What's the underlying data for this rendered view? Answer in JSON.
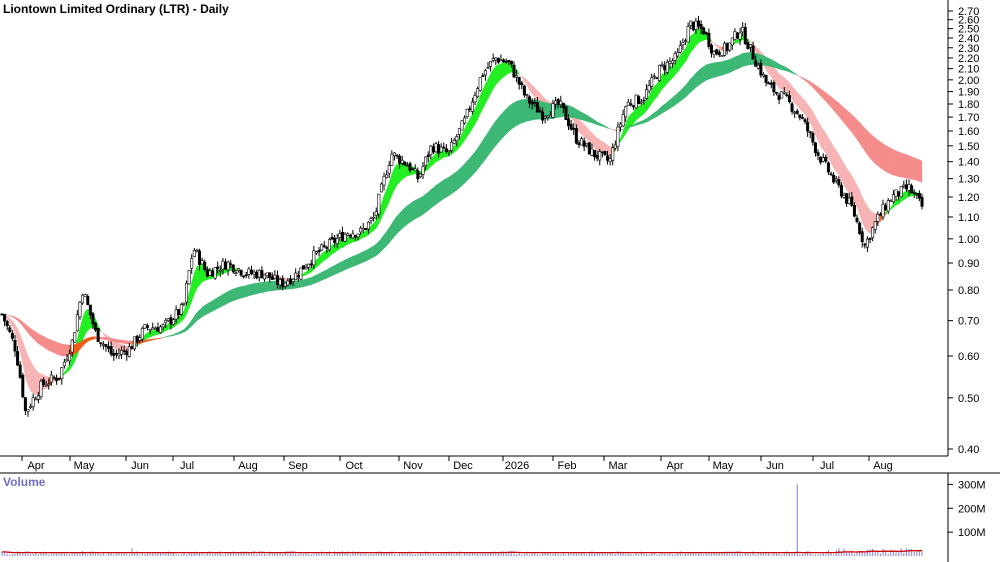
{
  "colors": {
    "background": "#ffffff",
    "short_band_up": "#22ee22",
    "short_band_down_light": "#f7b4b4",
    "short_band_down": "#f25a1a",
    "long_band_up": "#3cb874",
    "long_band_down_light": "#f58c8c",
    "long_band_down": "#f25a1a",
    "candle": "#000000",
    "volume_bar": "#8a8ae0",
    "volume_ma": "#cc0000",
    "axis_text": "#000000",
    "volume_title": "#6f6fc9"
  },
  "chart_data": [
    {
      "type": "candlestick",
      "title": "Liontown Limited Ordinary (LTR) - Daily",
      "xlabel": "",
      "ylabel": "",
      "ylim": [
        0.35,
        2.72
      ],
      "grid": false,
      "legend": "none",
      "y_scale": "log",
      "x_tick_labels": [
        "Apr",
        "May",
        "Jun",
        "Jul",
        "Aug",
        "Sep",
        "Oct",
        "Nov",
        "Dec",
        "2026",
        "Feb",
        "Mar",
        "Apr",
        "May",
        "Jun",
        "Jul",
        "Aug"
      ],
      "y_tick_labels": [
        "2.70",
        "2.60",
        "2.50",
        "2.40",
        "2.30",
        "2.20",
        "2.10",
        "2.00",
        "1.90",
        "1.80",
        "1.70",
        "1.60",
        "1.50",
        "1.40",
        "1.30",
        "1.20",
        "1.10",
        "1.00",
        "0.90",
        "0.80",
        "0.70",
        "0.60",
        "0.50",
        "0.40"
      ],
      "close_points": [
        [
          "Apr",
          0.72
        ],
        [
          "Apr",
          0.55
        ],
        [
          "May",
          0.52
        ],
        [
          "May",
          0.8
        ],
        [
          "Jun",
          0.62
        ],
        [
          "Jun",
          0.68
        ],
        [
          "Jul",
          0.72
        ],
        [
          "Jul",
          0.96
        ],
        [
          "Aug",
          0.86
        ],
        [
          "Aug",
          0.9
        ],
        [
          "Sep",
          0.82
        ],
        [
          "Sep",
          0.86
        ],
        [
          "Oct",
          0.92
        ],
        [
          "Oct",
          1.0
        ],
        [
          "Nov",
          1.15
        ],
        [
          "Nov",
          1.45
        ],
        [
          "Dec",
          1.4
        ],
        [
          "Dec",
          1.6
        ],
        [
          "2026",
          2.05
        ],
        [
          "2026",
          2.15
        ],
        [
          "Feb",
          1.8
        ],
        [
          "Feb",
          1.7
        ],
        [
          "Mar",
          1.55
        ],
        [
          "Mar",
          1.4
        ],
        [
          "Apr",
          1.8
        ],
        [
          "Apr",
          2.1
        ],
        [
          "May",
          2.55
        ],
        [
          "May",
          2.25
        ],
        [
          "Jun",
          2.4
        ],
        [
          "Jun",
          1.85
        ],
        [
          "Jul",
          1.5
        ],
        [
          "Jul",
          1.2
        ],
        [
          "Aug",
          0.97
        ],
        [
          "Aug",
          1.22
        ],
        [
          "Aug",
          1.17
        ]
      ],
      "short_ma_band": [
        [
          "Apr",
          0.66,
          0.68,
          "up"
        ],
        [
          "May",
          0.6,
          0.62,
          "down"
        ],
        [
          "Jun",
          0.65,
          0.66,
          "up"
        ],
        [
          "Jul",
          0.74,
          0.77,
          "up"
        ],
        [
          "Aug",
          0.85,
          0.87,
          "up"
        ],
        [
          "Sep",
          0.85,
          0.86,
          "mixed"
        ],
        [
          "Oct",
          0.93,
          0.96,
          "up"
        ],
        [
          "Nov",
          1.05,
          1.1,
          "up"
        ],
        [
          "Dec",
          1.3,
          1.45,
          "up"
        ],
        [
          "2026",
          1.6,
          1.8,
          "up"
        ],
        [
          "Feb",
          1.78,
          1.96,
          "down"
        ],
        [
          "Mar",
          1.65,
          1.7,
          "down"
        ],
        [
          "Apr",
          1.85,
          1.95,
          "up"
        ],
        [
          "May",
          2.15,
          2.3,
          "up"
        ],
        [
          "Jun",
          2.25,
          2.35,
          "down"
        ],
        [
          "Jul",
          1.6,
          1.8,
          "down_light"
        ],
        [
          "Aug",
          1.22,
          1.3,
          "down"
        ]
      ],
      "long_ma_band": [
        [
          "Apr",
          0.78,
          0.87,
          "down_light"
        ],
        [
          "Jun",
          0.74,
          0.81,
          "down"
        ],
        [
          "Jul",
          0.73,
          0.78,
          "down"
        ],
        [
          "Aug",
          0.78,
          0.8,
          "down"
        ],
        [
          "Oct",
          0.84,
          0.86,
          "up"
        ],
        [
          "Nov",
          0.92,
          0.96,
          "up"
        ],
        [
          "Dec",
          1.05,
          1.15,
          "up"
        ],
        [
          "2026",
          1.2,
          1.33,
          "up"
        ],
        [
          "Mar",
          1.37,
          1.47,
          "up"
        ],
        [
          "May",
          1.55,
          1.68,
          "up"
        ],
        [
          "Jun",
          1.75,
          1.85,
          "up"
        ],
        [
          "Jul",
          1.7,
          1.8,
          "down"
        ],
        [
          "Aug",
          1.58,
          1.65,
          "down"
        ]
      ]
    },
    {
      "type": "bar",
      "title": "Volume",
      "xlabel": "",
      "ylabel": "",
      "ylim": [
        0,
        310
      ],
      "y_tick_labels": [
        "300M",
        "200M",
        "100M"
      ],
      "grid": false,
      "legend": "none",
      "spike_points": [
        [
          "May",
          32
        ],
        [
          "Mar",
          300
        ],
        [
          "Mar",
          25
        ],
        [
          "Apr",
          28
        ],
        [
          "Jun",
          22
        ],
        [
          "Aug",
          30
        ],
        [
          "Aug",
          25
        ]
      ],
      "typical_volume": 12,
      "volume_ma": 18
    }
  ]
}
